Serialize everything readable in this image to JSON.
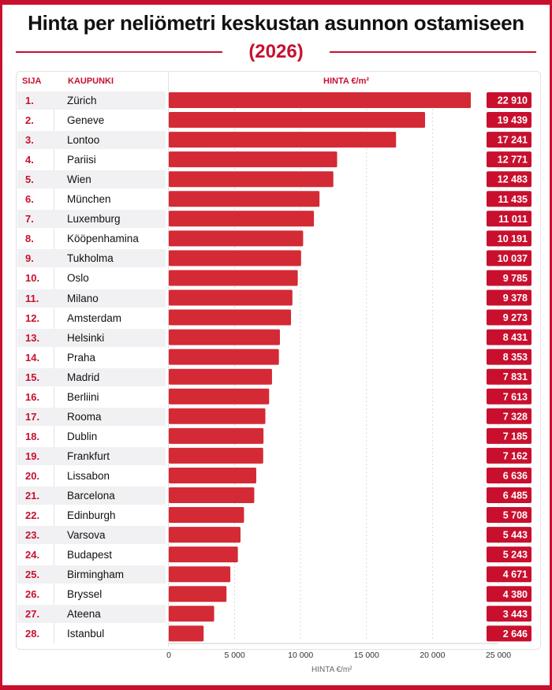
{
  "title": "Hinta per neliömetri keskustan asunnon ostamiseen",
  "subtitle": "(2026)",
  "headers": {
    "rank": "SIJA",
    "city": "KAUPUNKI",
    "price": "HINTA €/m²"
  },
  "colors": {
    "accent": "#c8102e",
    "bar": "#d42a35",
    "label_bg": "#c8102e",
    "zebra": "#f1f1f3"
  },
  "chart_data": {
    "type": "bar",
    "orientation": "horizontal",
    "title": "Hinta per neliömetri keskustan asunnon ostamiseen",
    "subtitle": "(2026)",
    "xlabel": "HINTA €/m²",
    "ylabel": "",
    "xlim": [
      0,
      25000
    ],
    "xticks": [
      0,
      5000,
      10000,
      15000,
      20000,
      25000
    ],
    "xtick_labels": [
      "0",
      "5 000",
      "10 000",
      "15 000",
      "20 000",
      "25 000"
    ],
    "grid": true,
    "ranks": [
      "1.",
      "2.",
      "3.",
      "4.",
      "5.",
      "6.",
      "7.",
      "8.",
      "9.",
      "10.",
      "11.",
      "12.",
      "13.",
      "14.",
      "15.",
      "16.",
      "17.",
      "18.",
      "19.",
      "20.",
      "21.",
      "22.",
      "23.",
      "24.",
      "25.",
      "26.",
      "27.",
      "28."
    ],
    "categories": [
      "Zürich",
      "Geneve",
      "Lontoo",
      "Pariisi",
      "Wien",
      "München",
      "Luxemburg",
      "Kööpenhamina",
      "Tukholma",
      "Oslo",
      "Milano",
      "Amsterdam",
      "Helsinki",
      "Praha",
      "Madrid",
      "Berliini",
      "Rooma",
      "Dublin",
      "Frankfurt",
      "Lissabon",
      "Barcelona",
      "Edinburgh",
      "Varsova",
      "Budapest",
      "Birmingham",
      "Bryssel",
      "Ateena",
      "Istanbul"
    ],
    "values": [
      22910,
      19439,
      17241,
      12771,
      12483,
      11435,
      11011,
      10191,
      10037,
      9785,
      9378,
      9273,
      8431,
      8353,
      7831,
      7613,
      7328,
      7185,
      7162,
      6636,
      6485,
      5708,
      5443,
      5243,
      4671,
      4380,
      3443,
      2646
    ],
    "value_labels": [
      "22 910",
      "19 439",
      "17 241",
      "12 771",
      "12 483",
      "11 435",
      "11 011",
      "10 191",
      "10 037",
      "9 785",
      "9 378",
      "9 273",
      "8 431",
      "8 353",
      "7 831",
      "7 613",
      "7 328",
      "7 185",
      "7 162",
      "6 636",
      "6 485",
      "5 708",
      "5 443",
      "5 243",
      "4 671",
      "4 380",
      "3 443",
      "2 646"
    ]
  }
}
